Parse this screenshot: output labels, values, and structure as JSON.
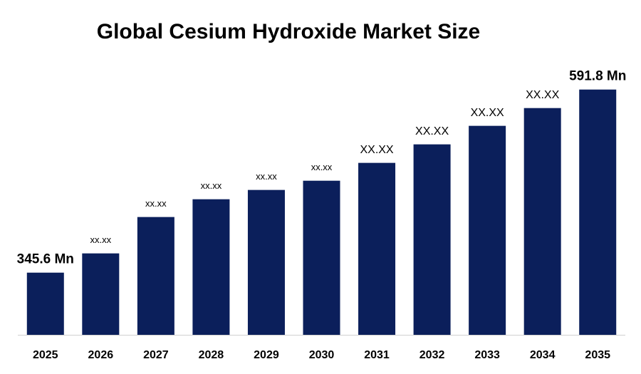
{
  "chart_data": {
    "type": "bar",
    "title": "Global Cesium Hydroxide Market Size",
    "categories": [
      "2025",
      "2026",
      "2027",
      "2028",
      "2029",
      "2030",
      "2031",
      "2032",
      "2033",
      "2034",
      "2035"
    ],
    "values": [
      345.6,
      371.5,
      420.4,
      444.3,
      456.8,
      469.2,
      493.2,
      518.1,
      543.0,
      566.9,
      591.8
    ],
    "value_labels": [
      "345.6 Mn",
      "xx.xx",
      "xx.xx",
      "xx.xx",
      "xx.xx",
      "xx.xx",
      "XX.XX",
      "XX.XX",
      "XX.XX",
      "XX.XX",
      "591.8 Mn"
    ],
    "color": "#0b1f5b",
    "ylim": [
      262,
      626
    ]
  }
}
